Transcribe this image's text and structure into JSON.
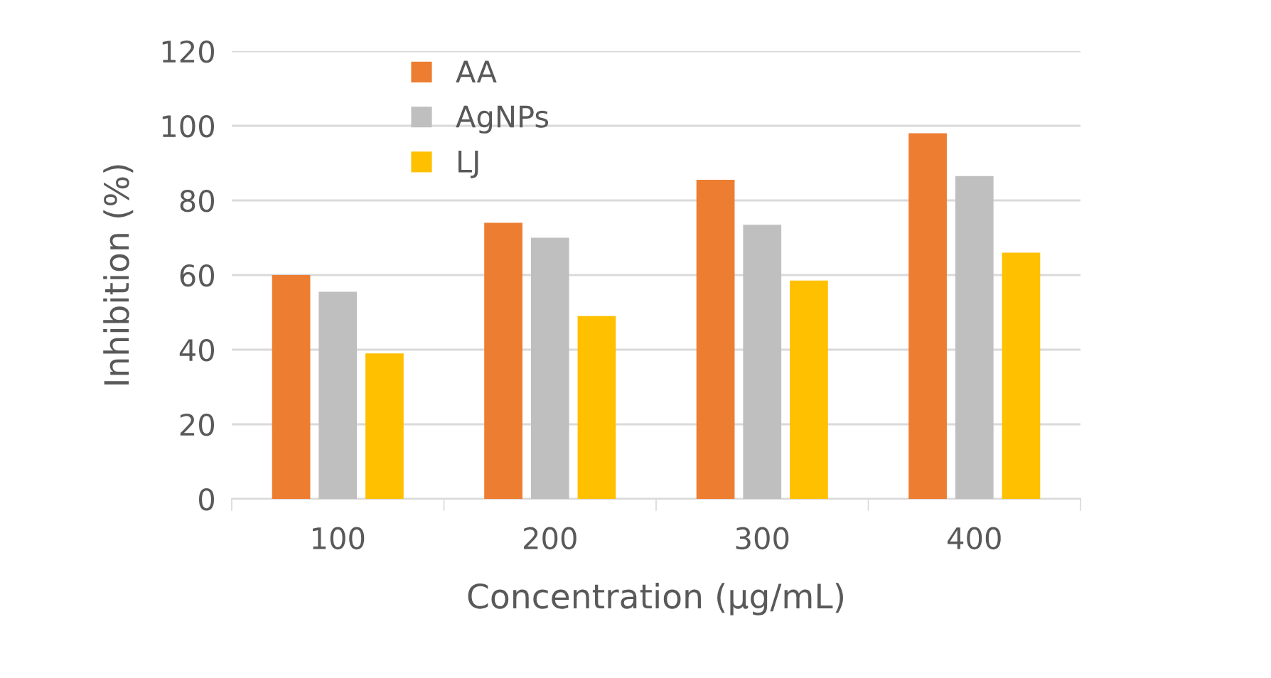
{
  "chart_data": {
    "type": "bar",
    "xlabel": "Concentration (µg/mL)",
    "ylabel": "Inhibition (%)",
    "categories": [
      "100",
      "200",
      "300",
      "400"
    ],
    "series": [
      {
        "name": "AA",
        "color": "#ed7d31",
        "values": [
          60,
          74,
          85.5,
          98
        ]
      },
      {
        "name": "AgNPs",
        "color": "#bfbfbf",
        "values": [
          55.5,
          70,
          73.5,
          86.5
        ]
      },
      {
        "name": "LJ",
        "color": "#ffc000",
        "values": [
          39,
          49,
          58.5,
          66
        ]
      }
    ],
    "ylim": [
      0,
      120
    ],
    "yticks": [
      0,
      20,
      40,
      60,
      80,
      100,
      120
    ],
    "grid": "y",
    "legend": "top left"
  }
}
